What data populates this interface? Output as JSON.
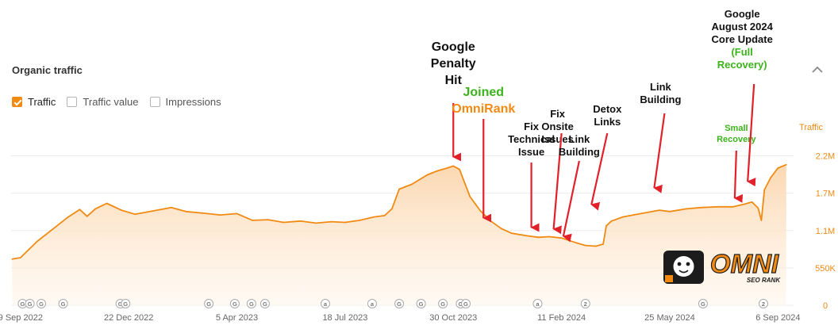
{
  "card": {
    "title": "Organic traffic"
  },
  "legend": [
    {
      "label": "Traffic",
      "checked": true
    },
    {
      "label": "Traffic value",
      "checked": false
    },
    {
      "label": "Impressions",
      "checked": false
    }
  ],
  "colors": {
    "line": "#f08a12",
    "area_top": "#fbd6ad",
    "annotation": "#111111",
    "arrow": "#e2202a",
    "accent_orange": "#f08a12",
    "accent_green": "#3bb31b"
  },
  "chart_data": {
    "type": "area",
    "y_axis_title": "Traffic",
    "ylim": [
      0,
      2475000
    ],
    "y_ticks": [
      {
        "value": 0,
        "label": "0"
      },
      {
        "value": 550000,
        "label": "550K"
      },
      {
        "value": 1100000,
        "label": "1.1M"
      },
      {
        "value": 1650000,
        "label": "1.7M"
      },
      {
        "value": 2200000,
        "label": "2.2M"
      }
    ],
    "x_range": [
      "2022-08-31",
      "2024-09-21"
    ],
    "x_ticks": [
      "9 Sep 2022",
      "22 Dec 2022",
      "5 Apr 2023",
      "18 Jul 2023",
      "30 Oct 2023",
      "11 Feb 2024",
      "25 May 2024",
      "6 Sep 2024"
    ],
    "x_tick_dates": [
      "2022-09-09",
      "2022-12-22",
      "2023-04-05",
      "2023-07-18",
      "2023-10-30",
      "2024-02-11",
      "2024-05-25",
      "2024-09-06"
    ],
    "grid": true,
    "series": [
      {
        "name": "Traffic",
        "x": [
          "2022-09-01",
          "2022-09-09",
          "2022-09-25",
          "2022-10-10",
          "2022-10-25",
          "2022-11-05",
          "2022-11-12",
          "2022-11-20",
          "2022-12-01",
          "2022-12-15",
          "2022-12-28",
          "2023-01-15",
          "2023-02-01",
          "2023-02-15",
          "2023-03-01",
          "2023-03-20",
          "2023-04-05",
          "2023-04-20",
          "2023-05-05",
          "2023-05-20",
          "2023-06-05",
          "2023-06-20",
          "2023-07-05",
          "2023-07-18",
          "2023-08-01",
          "2023-08-15",
          "2023-08-25",
          "2023-09-01",
          "2023-09-08",
          "2023-09-20",
          "2023-10-05",
          "2023-10-15",
          "2023-10-24",
          "2023-10-30",
          "2023-11-05",
          "2023-11-15",
          "2023-11-25",
          "2023-12-05",
          "2023-12-15",
          "2023-12-25",
          "2024-01-10",
          "2024-01-20",
          "2024-01-30",
          "2024-02-11",
          "2024-02-25",
          "2024-03-05",
          "2024-03-15",
          "2024-03-22",
          "2024-03-25",
          "2024-03-30",
          "2024-04-10",
          "2024-04-20",
          "2024-05-01",
          "2024-05-15",
          "2024-05-25",
          "2024-06-10",
          "2024-06-25",
          "2024-07-10",
          "2024-07-25",
          "2024-08-05",
          "2024-08-12",
          "2024-08-18",
          "2024-08-21",
          "2024-08-24",
          "2024-08-30",
          "2024-09-06",
          "2024-09-14"
        ],
        "values": [
          680000,
          700000,
          940000,
          1120000,
          1300000,
          1410000,
          1310000,
          1420000,
          1500000,
          1400000,
          1340000,
          1390000,
          1440000,
          1380000,
          1360000,
          1330000,
          1350000,
          1250000,
          1260000,
          1220000,
          1240000,
          1210000,
          1230000,
          1220000,
          1250000,
          1300000,
          1320000,
          1420000,
          1710000,
          1780000,
          1920000,
          1980000,
          2020000,
          2050000,
          2000000,
          1600000,
          1390000,
          1240000,
          1130000,
          1060000,
          1020000,
          1000000,
          1010000,
          990000,
          920000,
          880000,
          870000,
          900000,
          1170000,
          1240000,
          1300000,
          1330000,
          1360000,
          1400000,
          1380000,
          1420000,
          1440000,
          1450000,
          1450000,
          1490000,
          1520000,
          1430000,
          1250000,
          1700000,
          1880000,
          2020000,
          2070000
        ]
      }
    ],
    "annotations": [
      {
        "date": "2023-10-30",
        "lines": [
          "Google",
          "Penalty",
          "Hit"
        ]
      },
      {
        "date": "2023-11-28",
        "lines": [
          {
            "text": "Joined",
            "color": "green"
          },
          {
            "text": "OmniRank",
            "color": "orange"
          }
        ]
      },
      {
        "date": "2024-01-13",
        "lines": [
          "Fix",
          "Technical",
          "Issue"
        ]
      },
      {
        "date": "2024-02-11",
        "lines": [
          "Fix",
          "Onsite",
          "Issues"
        ]
      },
      {
        "date": "2024-02-28",
        "lines": [
          "Link",
          "Building"
        ]
      },
      {
        "date": "2024-03-26",
        "lines": [
          "Detox",
          "Links"
        ]
      },
      {
        "date": "2024-05-20",
        "lines": [
          "Link",
          "Building"
        ]
      },
      {
        "date": "2024-07-28",
        "lines": [
          {
            "text": "Small",
            "color": "green"
          },
          {
            "text": "Recovery",
            "color": "green"
          }
        ]
      },
      {
        "date": "2024-08-14",
        "lines": [
          "Google",
          "August 2024",
          "Core Update",
          {
            "text": "(Full",
            "color": "green"
          },
          {
            "text": "Recovery)",
            "color": "green"
          }
        ]
      }
    ],
    "event_markers": [
      {
        "date": "2022-09-11",
        "icon": "G"
      },
      {
        "date": "2022-09-18",
        "icon": "G"
      },
      {
        "date": "2022-09-29",
        "icon": "G"
      },
      {
        "date": "2022-10-20",
        "icon": "G"
      },
      {
        "date": "2022-12-14",
        "icon": "G"
      },
      {
        "date": "2022-12-19",
        "icon": "G"
      },
      {
        "date": "2023-03-09",
        "icon": "G"
      },
      {
        "date": "2023-04-03",
        "icon": "G"
      },
      {
        "date": "2023-04-19",
        "icon": "G"
      },
      {
        "date": "2023-05-02",
        "icon": "G"
      },
      {
        "date": "2023-06-29",
        "icon": "a"
      },
      {
        "date": "2023-08-13",
        "icon": "a"
      },
      {
        "date": "2023-09-08",
        "icon": "G"
      },
      {
        "date": "2023-09-29",
        "icon": "G"
      },
      {
        "date": "2023-10-20",
        "icon": "G"
      },
      {
        "date": "2023-11-06",
        "icon": "G"
      },
      {
        "date": "2023-11-11",
        "icon": "G"
      },
      {
        "date": "2024-01-19",
        "icon": "a"
      },
      {
        "date": "2024-03-05",
        "icon": "2"
      },
      {
        "date": "2024-06-26",
        "icon": "G"
      },
      {
        "date": "2024-08-23",
        "icon": "2"
      }
    ]
  },
  "logo": {
    "brand": "OMNI",
    "tagline": "SEO RANK"
  }
}
